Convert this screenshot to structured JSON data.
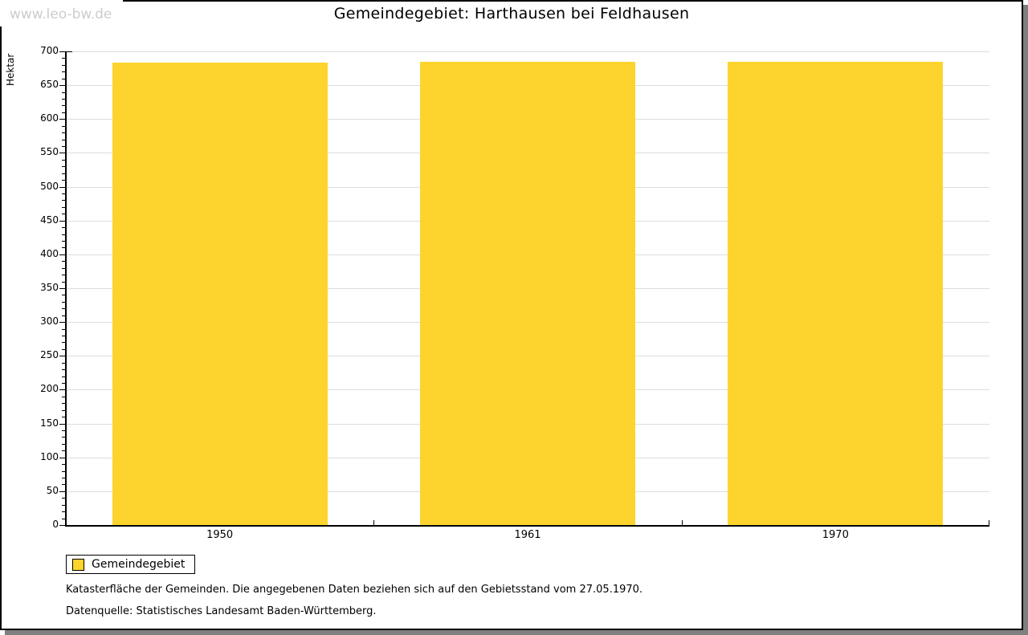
{
  "watermark": "www.leo-bw.de",
  "title": "Gemeindegebiet: Harthausen bei Feldhausen",
  "chart_data": {
    "type": "bar",
    "title": "Gemeindegebiet: Harthausen bei Feldhausen",
    "categories": [
      "1950",
      "1961",
      "1970"
    ],
    "series": [
      {
        "name": "Gemeindegebiet",
        "values": [
          683,
          684,
          684
        ]
      }
    ],
    "xlabel": "",
    "ylabel": "Hektar",
    "ylim": [
      0,
      700
    ],
    "ytick_step": 50,
    "yminor_step": 10,
    "grid": true,
    "legend_position": "bottom-left",
    "bar_color": "#FDD42D"
  },
  "legend": {
    "items": [
      {
        "label": "Gemeindegebiet",
        "color": "#FDD42D"
      }
    ]
  },
  "notes": [
    "Katasterfläche der Gemeinden. Die angegebenen Daten beziehen sich auf den Gebietsstand vom 27.05.1970.",
    "Datenquelle: Statistisches Landesamt Baden-Württemberg."
  ],
  "colors": {
    "bar": "#FDD42D",
    "grid": "#DDDDDD",
    "axis": "#000000",
    "shadow": "#7F7F7F",
    "watermark_text": "#CCCCCC",
    "background": "#FFFFFF"
  }
}
